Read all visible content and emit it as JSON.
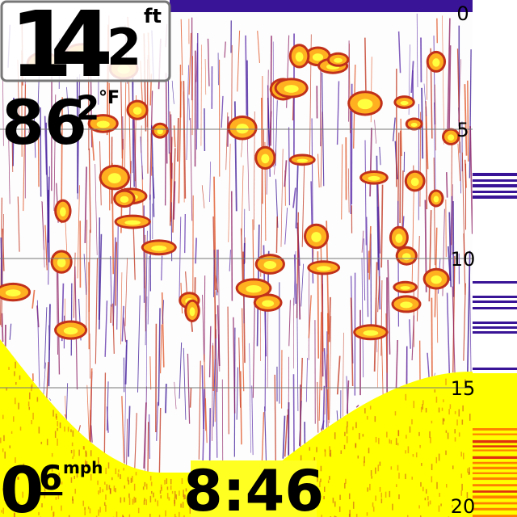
{
  "depth": {
    "whole": "14",
    "tenth": "2",
    "unit": "ft"
  },
  "temperature": {
    "whole": "86",
    "tenth": "2",
    "unit": "°F"
  },
  "speed": {
    "whole": "0",
    "tenth": "6",
    "unit": "mph"
  },
  "time": "8:46",
  "depth_scale": {
    "range": [
      0,
      20
    ],
    "ticks": [
      0,
      5,
      10,
      15,
      20
    ]
  }
}
